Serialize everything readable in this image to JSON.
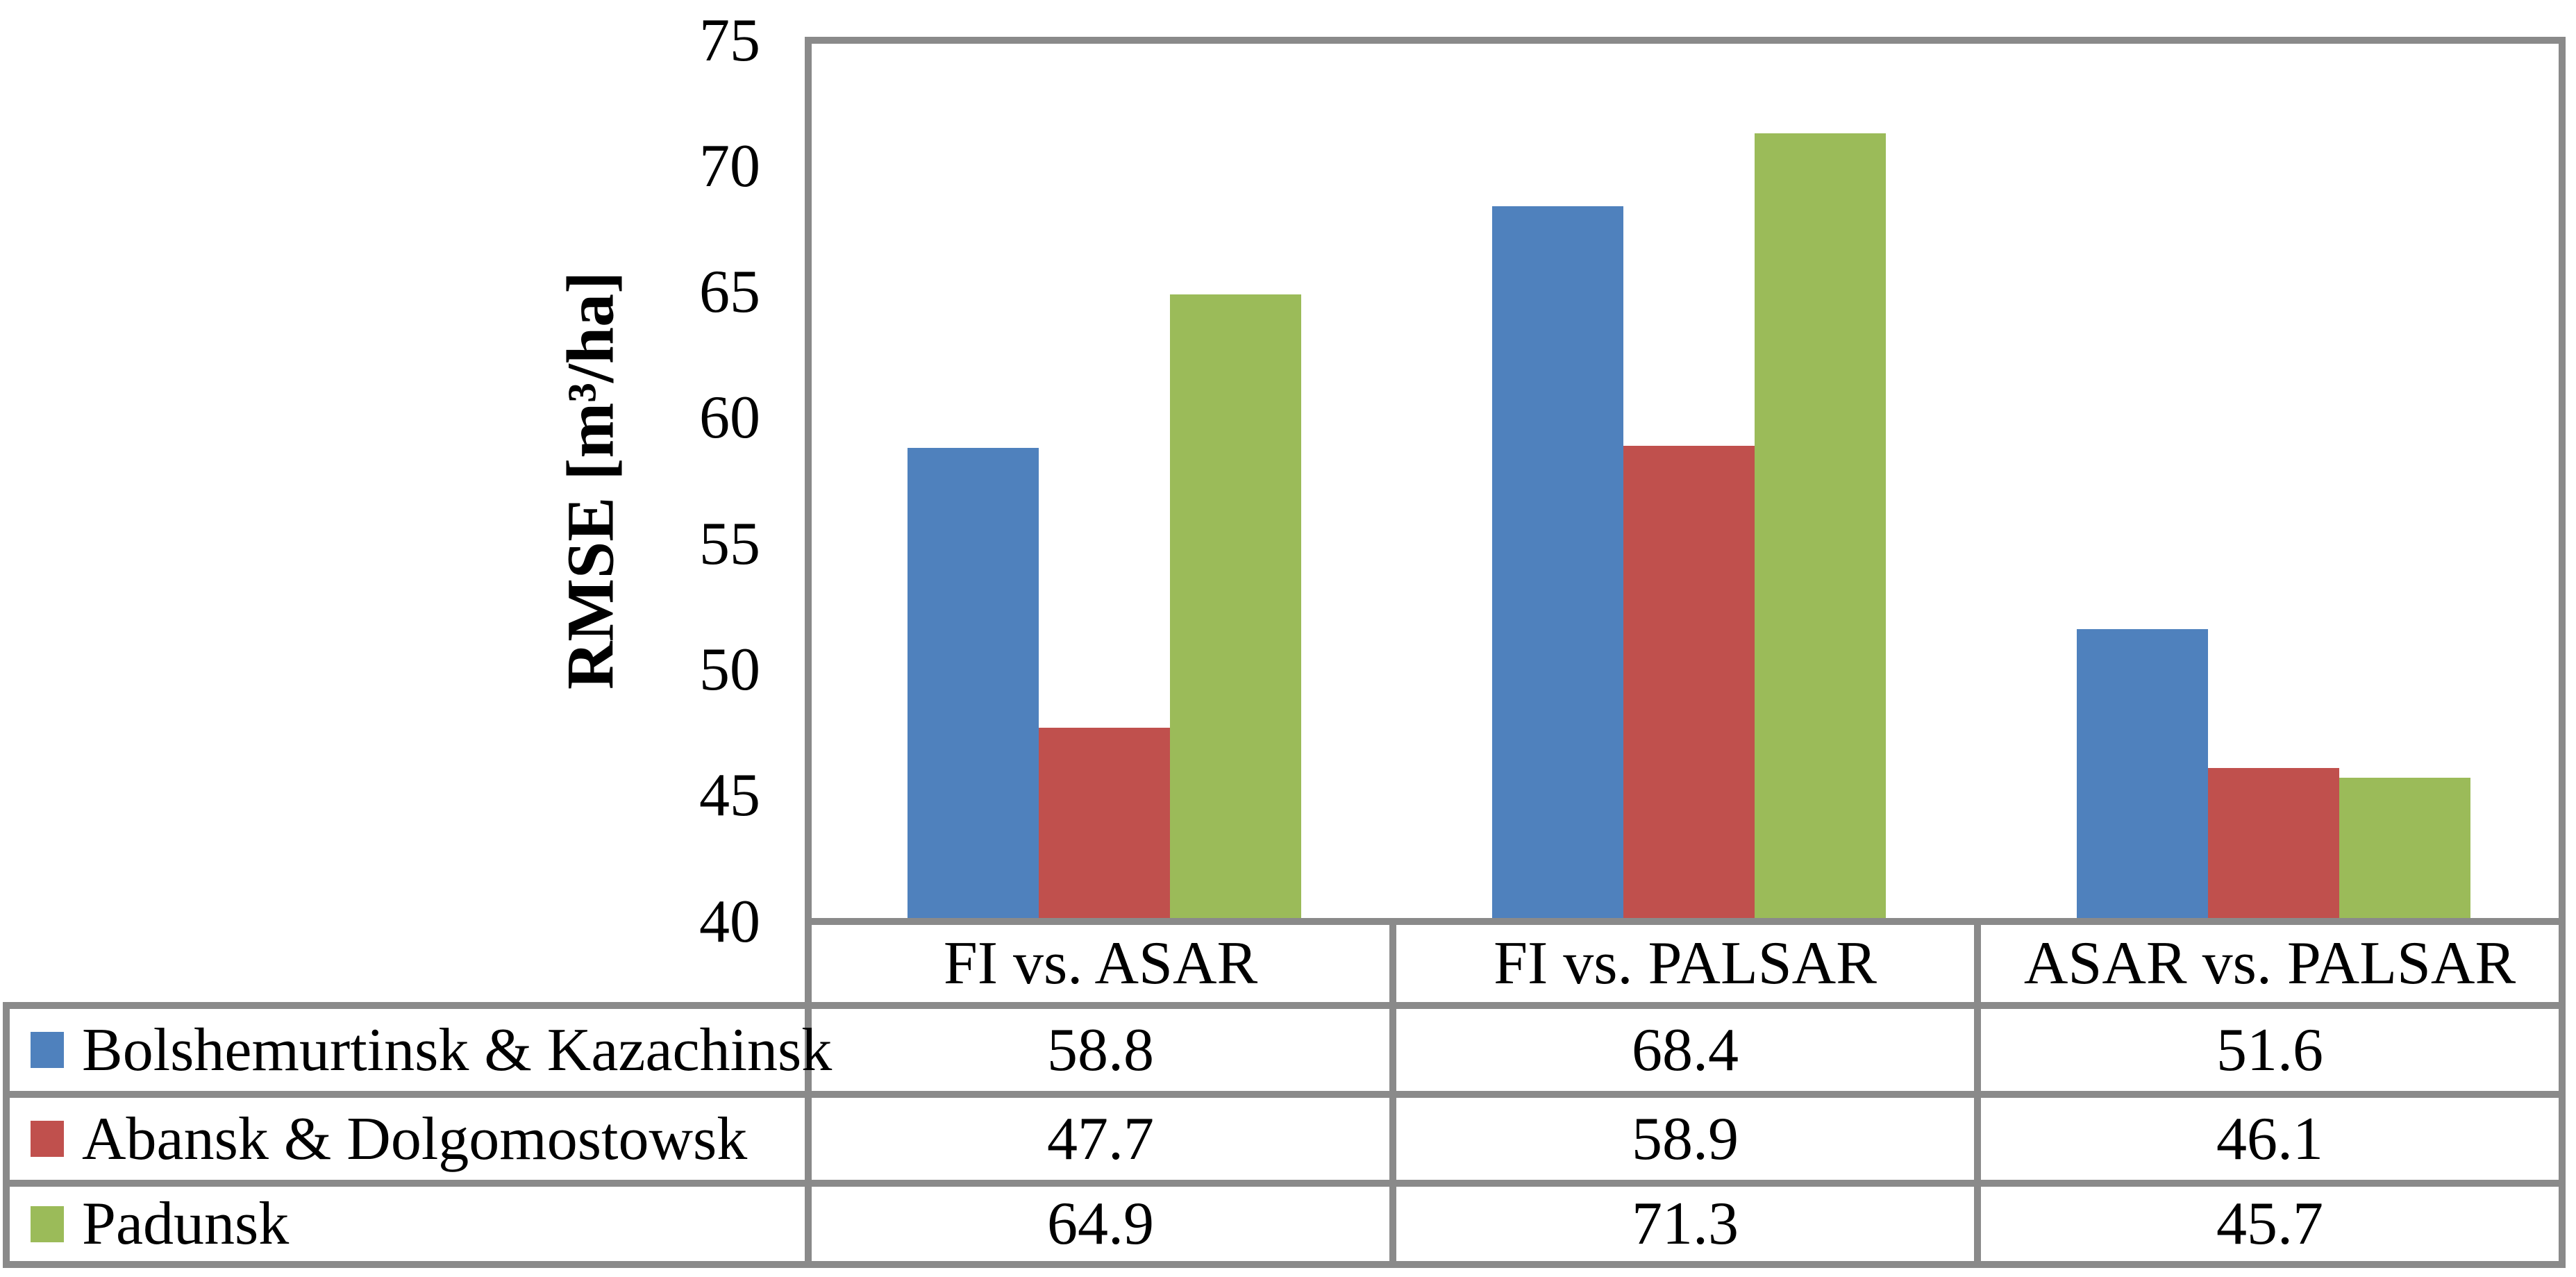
{
  "chart_data": {
    "type": "bar",
    "title": "",
    "ylabel": "RMSE [m³/ha]",
    "xlabel": "",
    "ylim": [
      40,
      75
    ],
    "yticks": [
      40,
      45,
      50,
      55,
      60,
      65,
      70,
      75
    ],
    "grid": false,
    "legend_position": "data-table-left",
    "categories": [
      "FI vs. ASAR",
      "FI vs. PALSAR",
      "ASAR vs. PALSAR"
    ],
    "series": [
      {
        "name": "Bolshemurtinsk & Kazachinsk",
        "color": "#4F81BD",
        "values": [
          58.8,
          68.4,
          51.6
        ]
      },
      {
        "name": "Abansk & Dolgomostowsk",
        "color": "#C0504D",
        "values": [
          47.7,
          58.9,
          46.1
        ]
      },
      {
        "name": "Padunsk",
        "color": "#9BBB59",
        "values": [
          64.9,
          71.3,
          45.7
        ]
      }
    ],
    "value_decimals": 1
  },
  "style": {
    "border_color": "#8A8A8A",
    "background_color": "#FFFFFF",
    "text_color": "#000000"
  }
}
